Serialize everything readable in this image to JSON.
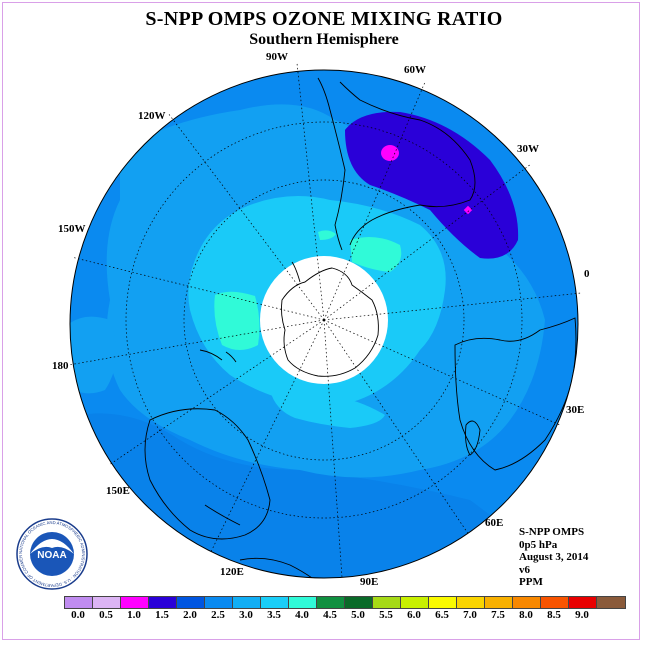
{
  "title": "S-NPP OMPS OZONE MIXING RATIO",
  "subtitle": "Southern Hemisphere",
  "map": {
    "projection": "south polar stereographic",
    "longitude_labels": [
      "90W",
      "60W",
      "30W",
      "0",
      "30E",
      "60E",
      "90E",
      "120E",
      "150E",
      "180",
      "150W",
      "120W"
    ],
    "background_color": "#0e8ae8",
    "land_outline_color": "#000000",
    "pole_fill": "#ffffff"
  },
  "info": {
    "instrument": "S-NPP OMPS",
    "pressure": "0p5 hPa",
    "date": "August 3, 2014",
    "version": "v6",
    "units": "PPM"
  },
  "colorbar": {
    "colors": [
      "#c08cf0",
      "#dcb4f4",
      "#ff00ff",
      "#2a00d8",
      "#0055e0",
      "#0a8af0",
      "#12aef4",
      "#1acef8",
      "#30fad8",
      "#109040",
      "#0a6a28",
      "#a6da16",
      "#c8f000",
      "#fafa00",
      "#fad400",
      "#f8b000",
      "#f88800",
      "#f85400",
      "#e80000",
      "#8a5a3a"
    ],
    "labels": [
      "0.0",
      "0.5",
      "1.0",
      "1.5",
      "2.0",
      "2.5",
      "3.0",
      "3.5",
      "4.0",
      "4.5",
      "5.0",
      "5.5",
      "6.0",
      "6.5",
      "7.0",
      "7.5",
      "8.0",
      "8.5",
      "9.0"
    ]
  },
  "logo": {
    "text": "NOAA",
    "ring_text": "NATIONAL OCEANIC AND ATMOSPHERIC ADMINISTRATION · U.S. DEPARTMENT OF COMMERCE"
  }
}
